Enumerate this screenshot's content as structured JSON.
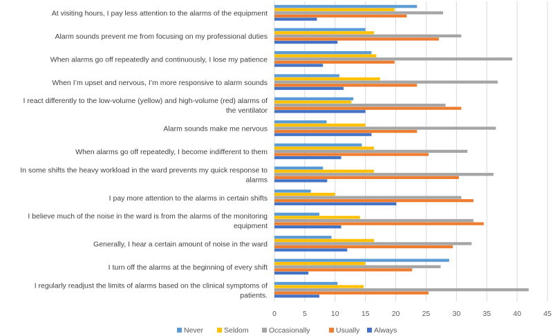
{
  "chart_data": {
    "type": "bar",
    "orientation": "horizontal",
    "title": "",
    "xlabel": "",
    "ylabel": "",
    "xlim": [
      0,
      45
    ],
    "xticks": [
      0,
      5,
      10,
      15,
      20,
      25,
      30,
      35,
      40,
      45
    ],
    "grid": true,
    "legend_position": "bottom",
    "categories": [
      [
        "At visiting hours, I pay less attention to the alarms of the equipment"
      ],
      [
        "Alarm sounds prevent me from focusing on my professional duties"
      ],
      [
        "When alarms go off repeatedly and continuously, I lose my patience"
      ],
      [
        "When I’m upset and nervous, I’m more responsive to alarm sounds"
      ],
      [
        "I react differently to the low-volume (yellow) and high-volume (red) alarms of",
        "the ventilator"
      ],
      [
        "Alarm sounds make me nervous"
      ],
      [
        "When alarms go off repeatedly, I become indifferent to them"
      ],
      [
        "In some shifts the heavy workload in the ward prevents my quick response to",
        "alarms"
      ],
      [
        "I pay more attention to the alarms in certain shifts"
      ],
      [
        "I believe much of the noise in the ward is from the alarms of the monitoring",
        "equipment"
      ],
      [
        "Generally, I hear a certain amount of noise in the ward"
      ],
      [
        "I turn off the alarms at the beginning of every shift"
      ],
      [
        "I regularly readjust the limits of alarms based on the clinical symptoms of",
        "patients."
      ]
    ],
    "series": [
      {
        "name": "Never",
        "color": "#5B9BD5",
        "values": [
          23.5,
          15,
          16,
          10.7,
          13,
          8.6,
          14.4,
          8,
          6,
          7.4,
          9.4,
          28.8,
          10.4
        ]
      },
      {
        "name": "Seldom",
        "color": "#FFC000",
        "values": [
          19.8,
          16.4,
          16.8,
          17.4,
          12.7,
          15,
          16.4,
          16.4,
          10,
          14.1,
          16.4,
          15,
          14.7
        ]
      },
      {
        "name": "Occasionally",
        "color": "#A5A5A5",
        "values": [
          27.8,
          30.8,
          39.2,
          36.8,
          28.2,
          36.5,
          31.8,
          36.1,
          30.8,
          32.8,
          32.5,
          27.4,
          41.9
        ]
      },
      {
        "name": "Usually",
        "color": "#ED7D31",
        "values": [
          21.8,
          27.1,
          19.8,
          23.5,
          30.8,
          23.5,
          25.4,
          30.4,
          32.8,
          34.5,
          29.4,
          22.7,
          25.4
        ]
      },
      {
        "name": "Always",
        "color": "#4472C4",
        "values": [
          7,
          10.4,
          8,
          11.4,
          15,
          16,
          11,
          8.7,
          20.1,
          11,
          12,
          5.6,
          7.4
        ]
      }
    ]
  }
}
